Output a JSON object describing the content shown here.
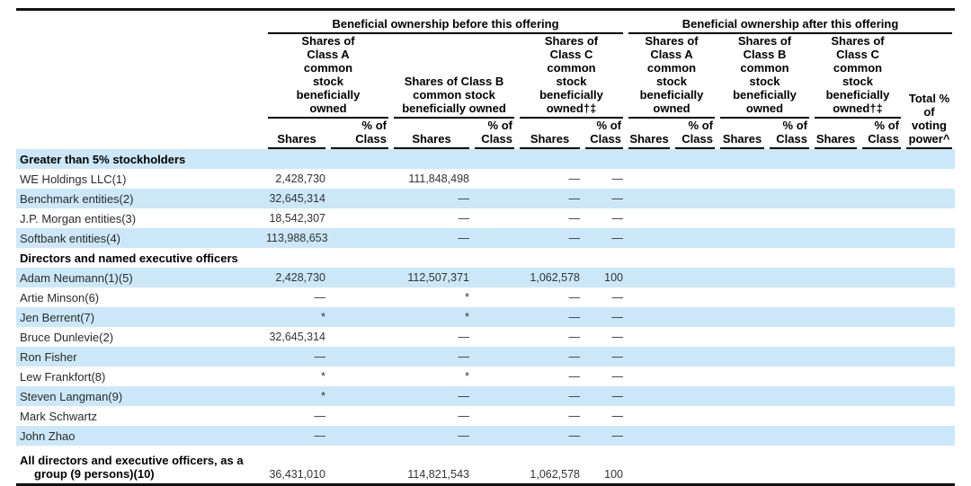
{
  "page": {
    "background_color": "#ffffff",
    "shaded_row_color": "#cce8f8",
    "rule_color": "#000000"
  },
  "table": {
    "spanner_before": "Beneficial ownership before this offering",
    "spanner_after": "Beneficial ownership after this offering",
    "group_headers": {
      "before_class_a": "Shares of Class A common stock beneficially owned",
      "before_class_b": "Shares of Class B common stock beneficially owned",
      "before_class_c": "Shares of Class C common stock beneficially owned†‡",
      "after_class_a": "Shares of Class A common stock beneficially owned",
      "after_class_b": "Shares of Class B common stock beneficially owned",
      "after_class_c": "Shares of Class C common stock beneficially owned†‡",
      "total_voting_power": "Total % of voting power^"
    },
    "sub_headers": {
      "shares": "Shares",
      "pct_of_class": "% of Class"
    },
    "rows": [
      {
        "type": "section",
        "label": "Greater than 5% stockholders",
        "shaded": true
      },
      {
        "type": "data",
        "label": "WE Holdings LLC(1)",
        "shaded": false,
        "values": [
          "2,428,730",
          "",
          "111,848,498",
          "",
          "—",
          "—",
          "",
          "",
          "",
          "",
          "",
          "",
          ""
        ]
      },
      {
        "type": "data",
        "label": "Benchmark entities(2)",
        "shaded": true,
        "values": [
          "32,645,314",
          "",
          "—",
          "",
          "—",
          "—",
          "",
          "",
          "",
          "",
          "",
          "",
          ""
        ]
      },
      {
        "type": "data",
        "label": "J.P. Morgan entities(3)",
        "shaded": false,
        "values": [
          "18,542,307",
          "",
          "—",
          "",
          "—",
          "—",
          "",
          "",
          "",
          "",
          "",
          "",
          ""
        ]
      },
      {
        "type": "data",
        "label": "Softbank entities(4)",
        "shaded": true,
        "values": [
          "113,988,653",
          "",
          "—",
          "",
          "—",
          "—",
          "",
          "",
          "",
          "",
          "",
          "",
          ""
        ]
      },
      {
        "type": "section",
        "label": "Directors and named executive officers",
        "shaded": false
      },
      {
        "type": "data",
        "label": "Adam Neumann(1)(5)",
        "shaded": true,
        "values": [
          "2,428,730",
          "",
          "112,507,371",
          "",
          "1,062,578",
          "100",
          "",
          "",
          "",
          "",
          "",
          "",
          ""
        ]
      },
      {
        "type": "data",
        "label": "Artie Minson(6)",
        "shaded": false,
        "values": [
          "—",
          "",
          "*",
          "",
          "—",
          "—",
          "",
          "",
          "",
          "",
          "",
          "",
          ""
        ]
      },
      {
        "type": "data",
        "label": "Jen Berrent(7)",
        "shaded": true,
        "values": [
          "*",
          "",
          "*",
          "",
          "—",
          "—",
          "",
          "",
          "",
          "",
          "",
          "",
          ""
        ]
      },
      {
        "type": "data",
        "label": "Bruce Dunlevie(2)",
        "shaded": false,
        "values": [
          "32,645,314",
          "",
          "—",
          "",
          "—",
          "—",
          "",
          "",
          "",
          "",
          "",
          "",
          ""
        ]
      },
      {
        "type": "data",
        "label": "Ron Fisher",
        "shaded": true,
        "values": [
          "—",
          "",
          "—",
          "",
          "—",
          "—",
          "",
          "",
          "",
          "",
          "",
          "",
          ""
        ]
      },
      {
        "type": "data",
        "label": "Lew Frankfort(8)",
        "shaded": false,
        "values": [
          "*",
          "",
          "*",
          "",
          "—",
          "—",
          "",
          "",
          "",
          "",
          "",
          "",
          ""
        ]
      },
      {
        "type": "data",
        "label": "Steven Langman(9)",
        "shaded": true,
        "values": [
          "*",
          "",
          "—",
          "",
          "—",
          "—",
          "",
          "",
          "",
          "",
          "",
          "",
          ""
        ]
      },
      {
        "type": "data",
        "label": "Mark Schwartz",
        "shaded": false,
        "values": [
          "—",
          "",
          "—",
          "",
          "—",
          "—",
          "",
          "",
          "",
          "",
          "",
          "",
          ""
        ]
      },
      {
        "type": "data",
        "label": "John Zhao",
        "shaded": true,
        "values": [
          "—",
          "",
          "—",
          "",
          "—",
          "—",
          "",
          "",
          "",
          "",
          "",
          "",
          ""
        ]
      },
      {
        "type": "total",
        "label": "All directors and executive officers, as a group (9 persons)(10)",
        "shaded": false,
        "values": [
          "36,431,010",
          "",
          "114,821,543",
          "",
          "1,062,578",
          "100",
          "",
          "",
          "",
          "",
          "",
          "",
          ""
        ]
      }
    ]
  }
}
